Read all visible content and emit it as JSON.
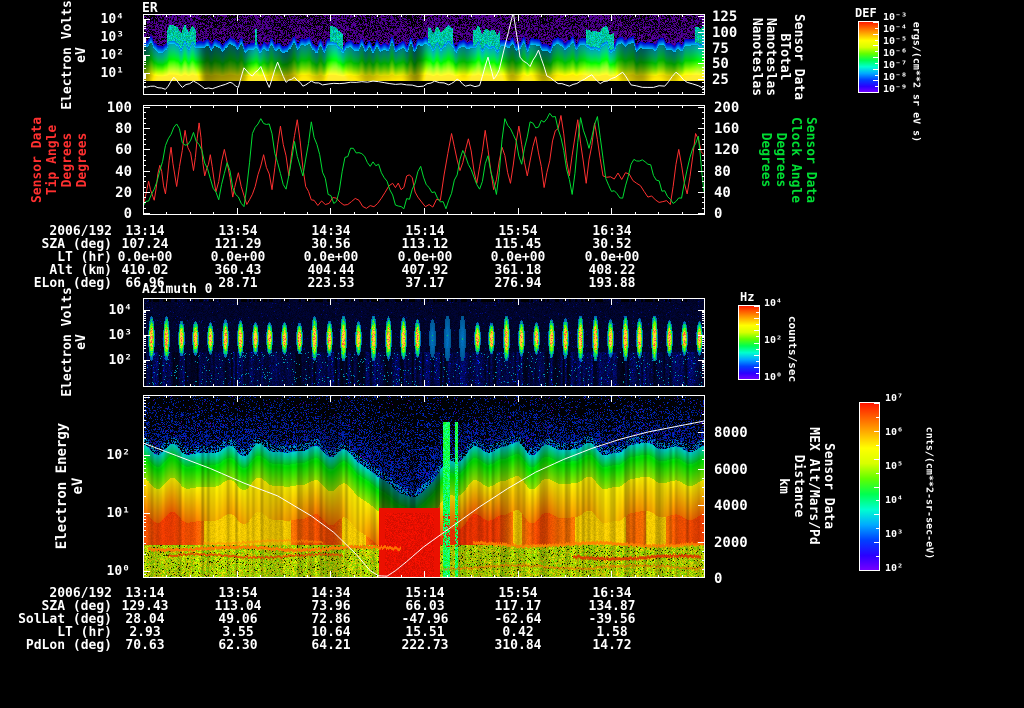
{
  "window": {
    "background": "#000000",
    "foreground": "#ffffff"
  },
  "colors": {
    "rainbow_bottom_to_top": [
      "#7a00ff",
      "#2a00ff",
      "#0040ff",
      "#00aaff",
      "#00ffd0",
      "#00ff50",
      "#60ff00",
      "#d8ff00",
      "#ffff00",
      "#ffb000",
      "#ff6000",
      "#ff1000"
    ],
    "tip_angle_red": "#ff3030",
    "clock_angle_green": "#00dd33",
    "overlay_white": "#ffffff"
  },
  "chart_data": [
    {
      "id": "er-spectrogram",
      "type": "heatmap",
      "title": "ER",
      "ylabel_lines": [
        "Electron Volts",
        "eV"
      ],
      "ytick_labels": [
        "10⁴",
        "10³",
        "10²",
        "10¹"
      ],
      "xtick_times": [
        "13:14",
        "13:54",
        "14:34",
        "15:14",
        "15:54",
        "16:34"
      ],
      "right_axis": {
        "title_lines": [
          "Sensor Data",
          "BTotal",
          "Nanoteslas",
          "Nanoteslas"
        ],
        "tick_values": [
          "125",
          "100",
          "75",
          "50",
          "25"
        ],
        "range": [
          0,
          125
        ]
      },
      "colorbar": {
        "title": "DEF",
        "tick_labels": [
          "10⁻³",
          "10⁻⁴",
          "10⁻⁵",
          "10⁻⁶",
          "10⁻⁷",
          "10⁻⁸",
          "10⁻⁹"
        ],
        "units": "ergs/(cm**2 sr eV s)"
      },
      "overlay_series": {
        "name": "BTotal",
        "units": "Nanoteslas",
        "range": [
          0,
          125
        ],
        "points": [
          [
            0,
            11
          ],
          [
            0.02,
            14
          ],
          [
            0.04,
            9
          ],
          [
            0.055,
            28
          ],
          [
            0.07,
            12
          ],
          [
            0.09,
            22
          ],
          [
            0.11,
            10
          ],
          [
            0.13,
            12
          ],
          [
            0.155,
            20
          ],
          [
            0.17,
            12
          ],
          [
            0.18,
            43
          ],
          [
            0.195,
            30
          ],
          [
            0.21,
            45
          ],
          [
            0.225,
            12
          ],
          [
            0.24,
            52
          ],
          [
            0.255,
            20
          ],
          [
            0.27,
            28
          ],
          [
            0.285,
            14
          ],
          [
            0.3,
            22
          ],
          [
            0.32,
            16
          ],
          [
            0.35,
            18
          ],
          [
            0.38,
            20
          ],
          [
            0.41,
            22
          ],
          [
            0.44,
            18
          ],
          [
            0.47,
            16
          ],
          [
            0.5,
            14
          ],
          [
            0.52,
            22
          ],
          [
            0.545,
            16
          ],
          [
            0.56,
            25
          ],
          [
            0.575,
            14
          ],
          [
            0.6,
            15
          ],
          [
            0.615,
            60
          ],
          [
            0.625,
            25
          ],
          [
            0.635,
            40
          ],
          [
            0.66,
            131
          ],
          [
            0.672,
            60
          ],
          [
            0.69,
            45
          ],
          [
            0.705,
            71
          ],
          [
            0.72,
            30
          ],
          [
            0.74,
            18
          ],
          [
            0.76,
            14
          ],
          [
            0.78,
            22
          ],
          [
            0.8,
            32
          ],
          [
            0.815,
            18
          ],
          [
            0.835,
            26
          ],
          [
            0.855,
            36
          ],
          [
            0.87,
            16
          ],
          [
            0.9,
            12
          ],
          [
            0.93,
            14
          ],
          [
            0.95,
            36
          ],
          [
            0.97,
            20
          ],
          [
            1,
            10
          ]
        ]
      }
    },
    {
      "id": "angle-lines",
      "type": "line",
      "left_axis": {
        "title_lines": [
          "Sensor Data",
          "Tip Angle",
          "Degrees",
          "Degrees"
        ],
        "tick_values": [
          "100",
          "80",
          "60",
          "40",
          "20",
          "0"
        ],
        "range": [
          0,
          100
        ]
      },
      "right_axis": {
        "title_lines": [
          "Sensor Data",
          "Clock Angle",
          "Degrees",
          "Degrees"
        ],
        "tick_values": [
          "200",
          "160",
          "120",
          "80",
          "40",
          "0"
        ],
        "range": [
          0,
          200
        ]
      },
      "series": [
        {
          "name": "Tip Angle",
          "axis": "left",
          "points": [
            [
              0,
              6
            ],
            [
              0.01,
              30
            ],
            [
              0.02,
              12
            ],
            [
              0.03,
              45
            ],
            [
              0.04,
              18
            ],
            [
              0.05,
              62
            ],
            [
              0.06,
              25
            ],
            [
              0.075,
              78
            ],
            [
              0.09,
              40
            ],
            [
              0.1,
              85
            ],
            [
              0.11,
              35
            ],
            [
              0.12,
              55
            ],
            [
              0.13,
              20
            ],
            [
              0.145,
              60
            ],
            [
              0.16,
              15
            ],
            [
              0.17,
              38
            ],
            [
              0.185,
              8
            ],
            [
              0.2,
              25
            ],
            [
              0.215,
              55
            ],
            [
              0.23,
              22
            ],
            [
              0.245,
              82
            ],
            [
              0.26,
              35
            ],
            [
              0.275,
              88
            ],
            [
              0.29,
              25
            ],
            [
              0.305,
              12
            ],
            [
              0.325,
              8
            ],
            [
              0.345,
              14
            ],
            [
              0.365,
              8
            ],
            [
              0.385,
              12
            ],
            [
              0.405,
              7
            ],
            [
              0.425,
              14
            ],
            [
              0.445,
              28
            ],
            [
              0.46,
              22
            ],
            [
              0.475,
              36
            ],
            [
              0.49,
              15
            ],
            [
              0.51,
              8
            ],
            [
              0.53,
              12
            ],
            [
              0.55,
              75
            ],
            [
              0.565,
              40
            ],
            [
              0.58,
              70
            ],
            [
              0.595,
              28
            ],
            [
              0.61,
              78
            ],
            [
              0.625,
              22
            ],
            [
              0.64,
              62
            ],
            [
              0.655,
              28
            ],
            [
              0.67,
              82
            ],
            [
              0.685,
              35
            ],
            [
              0.7,
              72
            ],
            [
              0.715,
              24
            ],
            [
              0.73,
              68
            ],
            [
              0.745,
              92
            ],
            [
              0.76,
              35
            ],
            [
              0.775,
              88
            ],
            [
              0.79,
              28
            ],
            [
              0.805,
              85
            ],
            [
              0.82,
              35
            ],
            [
              0.84,
              32
            ],
            [
              0.86,
              38
            ],
            [
              0.88,
              28
            ],
            [
              0.9,
              15
            ],
            [
              0.92,
              10
            ],
            [
              0.94,
              8
            ],
            [
              0.955,
              60
            ],
            [
              0.97,
              18
            ],
            [
              0.985,
              75
            ],
            [
              1,
              55
            ]
          ]
        },
        {
          "name": "Clock Angle",
          "axis": "right",
          "points": [
            [
              0,
              12
            ],
            [
              0.015,
              35
            ],
            [
              0.03,
              80
            ],
            [
              0.045,
              140
            ],
            [
              0.06,
              168
            ],
            [
              0.075,
              128
            ],
            [
              0.09,
              152
            ],
            [
              0.105,
              118
            ],
            [
              0.12,
              65
            ],
            [
              0.135,
              25
            ],
            [
              0.15,
              95
            ],
            [
              0.165,
              35
            ],
            [
              0.18,
              12
            ],
            [
              0.195,
              150
            ],
            [
              0.21,
              178
            ],
            [
              0.225,
              168
            ],
            [
              0.24,
              95
            ],
            [
              0.255,
              45
            ],
            [
              0.27,
              135
            ],
            [
              0.285,
              70
            ],
            [
              0.3,
              172
            ],
            [
              0.315,
              110
            ],
            [
              0.33,
              35
            ],
            [
              0.345,
              22
            ],
            [
              0.36,
              105
            ],
            [
              0.375,
              122
            ],
            [
              0.39,
              112
            ],
            [
              0.405,
              88
            ],
            [
              0.42,
              92
            ],
            [
              0.435,
              60
            ],
            [
              0.45,
              15
            ],
            [
              0.465,
              8
            ],
            [
              0.48,
              45
            ],
            [
              0.495,
              88
            ],
            [
              0.51,
              48
            ],
            [
              0.525,
              28
            ],
            [
              0.54,
              8
            ],
            [
              0.555,
              62
            ],
            [
              0.57,
              118
            ],
            [
              0.585,
              82
            ],
            [
              0.6,
              45
            ],
            [
              0.615,
              108
            ],
            [
              0.63,
              35
            ],
            [
              0.645,
              178
            ],
            [
              0.66,
              148
            ],
            [
              0.675,
              92
            ],
            [
              0.69,
              172
            ],
            [
              0.705,
              162
            ],
            [
              0.72,
              178
            ],
            [
              0.735,
              182
            ],
            [
              0.75,
              118
            ],
            [
              0.765,
              35
            ],
            [
              0.78,
              180
            ],
            [
              0.795,
              122
            ],
            [
              0.81,
              182
            ],
            [
              0.825,
              65
            ],
            [
              0.84,
              42
            ],
            [
              0.855,
              28
            ],
            [
              0.87,
              92
            ],
            [
              0.885,
              98
            ],
            [
              0.9,
              92
            ],
            [
              0.915,
              62
            ],
            [
              0.93,
              42
            ],
            [
              0.945,
              18
            ],
            [
              0.96,
              28
            ],
            [
              0.975,
              105
            ],
            [
              0.99,
              145
            ],
            [
              1,
              40
            ]
          ]
        }
      ]
    },
    {
      "id": "azimuth-spectrogram",
      "type": "heatmap",
      "title": "Azimuth 0",
      "ylabel_lines": [
        "Electron Volts",
        "eV"
      ],
      "ytick_labels": [
        "10⁴",
        "10³",
        "10²"
      ],
      "colorbar": {
        "title": "Hz",
        "tick_labels": [
          "10⁴",
          "10²",
          "10⁰"
        ],
        "units": "counts/sec"
      }
    },
    {
      "id": "electron-energy-spectrogram",
      "type": "heatmap",
      "ylabel_lines": [
        "Electron Energy",
        "eV"
      ],
      "ytick_labels": [
        "10²",
        "10¹",
        "10⁰"
      ],
      "xtick_times": [
        "13:14",
        "13:54",
        "14:34",
        "15:14",
        "15:54",
        "16:34"
      ],
      "right_axis": {
        "title_lines": [
          "Sensor Data",
          "MEX Alt/Mars/Pd",
          "Distance",
          "km"
        ],
        "tick_values": [
          "8000",
          "6000",
          "4000",
          "2000",
          "0"
        ],
        "range": [
          0,
          9600
        ]
      },
      "colorbar": {
        "title": "",
        "tick_labels": [
          "10⁷",
          "10⁶",
          "10⁵",
          "10⁴",
          "10³",
          "10²"
        ],
        "units": "cnts/(cm**2-sr-sec-eV)"
      },
      "overlay_series": {
        "name": "MEX altitude",
        "units": "km",
        "range": [
          0,
          9600
        ],
        "points": [
          [
            0,
            7400
          ],
          [
            0.06,
            6700
          ],
          [
            0.12,
            6000
          ],
          [
            0.18,
            5200
          ],
          [
            0.24,
            4500
          ],
          [
            0.3,
            3400
          ],
          [
            0.34,
            2500
          ],
          [
            0.38,
            1300
          ],
          [
            0.405,
            400
          ],
          [
            0.42,
            120
          ],
          [
            0.435,
            100
          ],
          [
            0.45,
            400
          ],
          [
            0.47,
            900
          ],
          [
            0.5,
            1700
          ],
          [
            0.55,
            2800
          ],
          [
            0.6,
            3900
          ],
          [
            0.65,
            4900
          ],
          [
            0.7,
            5800
          ],
          [
            0.75,
            6500
          ],
          [
            0.8,
            7100
          ],
          [
            0.85,
            7600
          ],
          [
            0.9,
            8000
          ],
          [
            0.95,
            8300
          ],
          [
            1,
            8600
          ]
        ]
      }
    }
  ],
  "tables": {
    "upper": {
      "row_labels": [
        "2006/192",
        "SZA (deg)",
        "LT (hr)",
        "Alt (km)",
        "ELon (deg)"
      ],
      "columns": [
        [
          "13:14",
          "107.24",
          "0.0e+00",
          "410.02",
          "66.96"
        ],
        [
          "13:54",
          "121.29",
          "0.0e+00",
          "360.43",
          "28.71"
        ],
        [
          "14:34",
          "30.56",
          "0.0e+00",
          "404.44",
          "223.53"
        ],
        [
          "15:14",
          "113.12",
          "0.0e+00",
          "407.92",
          "37.17"
        ],
        [
          "15:54",
          "115.45",
          "0.0e+00",
          "361.18",
          "276.94"
        ],
        [
          "16:34",
          "30.52",
          "0.0e+00",
          "408.22",
          "193.88"
        ]
      ]
    },
    "lower": {
      "row_labels": [
        "2006/192",
        "SZA (deg)",
        "SolLat (deg)",
        "LT (hr)",
        "PdLon (deg)"
      ],
      "columns": [
        [
          "13:14",
          "129.43",
          "28.04",
          "2.93",
          "70.63"
        ],
        [
          "13:54",
          "113.04",
          "49.06",
          "3.55",
          "62.30"
        ],
        [
          "14:34",
          "73.96",
          "72.86",
          "10.64",
          "64.21"
        ],
        [
          "15:14",
          "66.03",
          "-47.96",
          "15.51",
          "222.73"
        ],
        [
          "15:54",
          "117.17",
          "-62.64",
          "0.42",
          "310.84"
        ],
        [
          "16:34",
          "134.87",
          "-39.56",
          "1.58",
          "14.72"
        ]
      ]
    }
  }
}
